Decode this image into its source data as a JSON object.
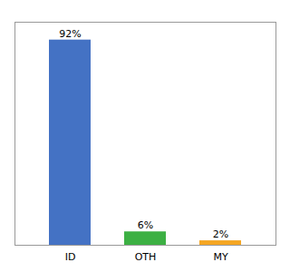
{
  "chart_data": {
    "type": "bar",
    "categories": [
      "ID",
      "OTH",
      "MY"
    ],
    "values": [
      92,
      6,
      2
    ],
    "value_labels": [
      "92%",
      "6%",
      "2%"
    ],
    "colors": [
      "#4472c4",
      "#3cb043",
      "#f5a623"
    ],
    "ylim": [
      0,
      100
    ],
    "data_labels": true,
    "tick_labels": "x"
  }
}
